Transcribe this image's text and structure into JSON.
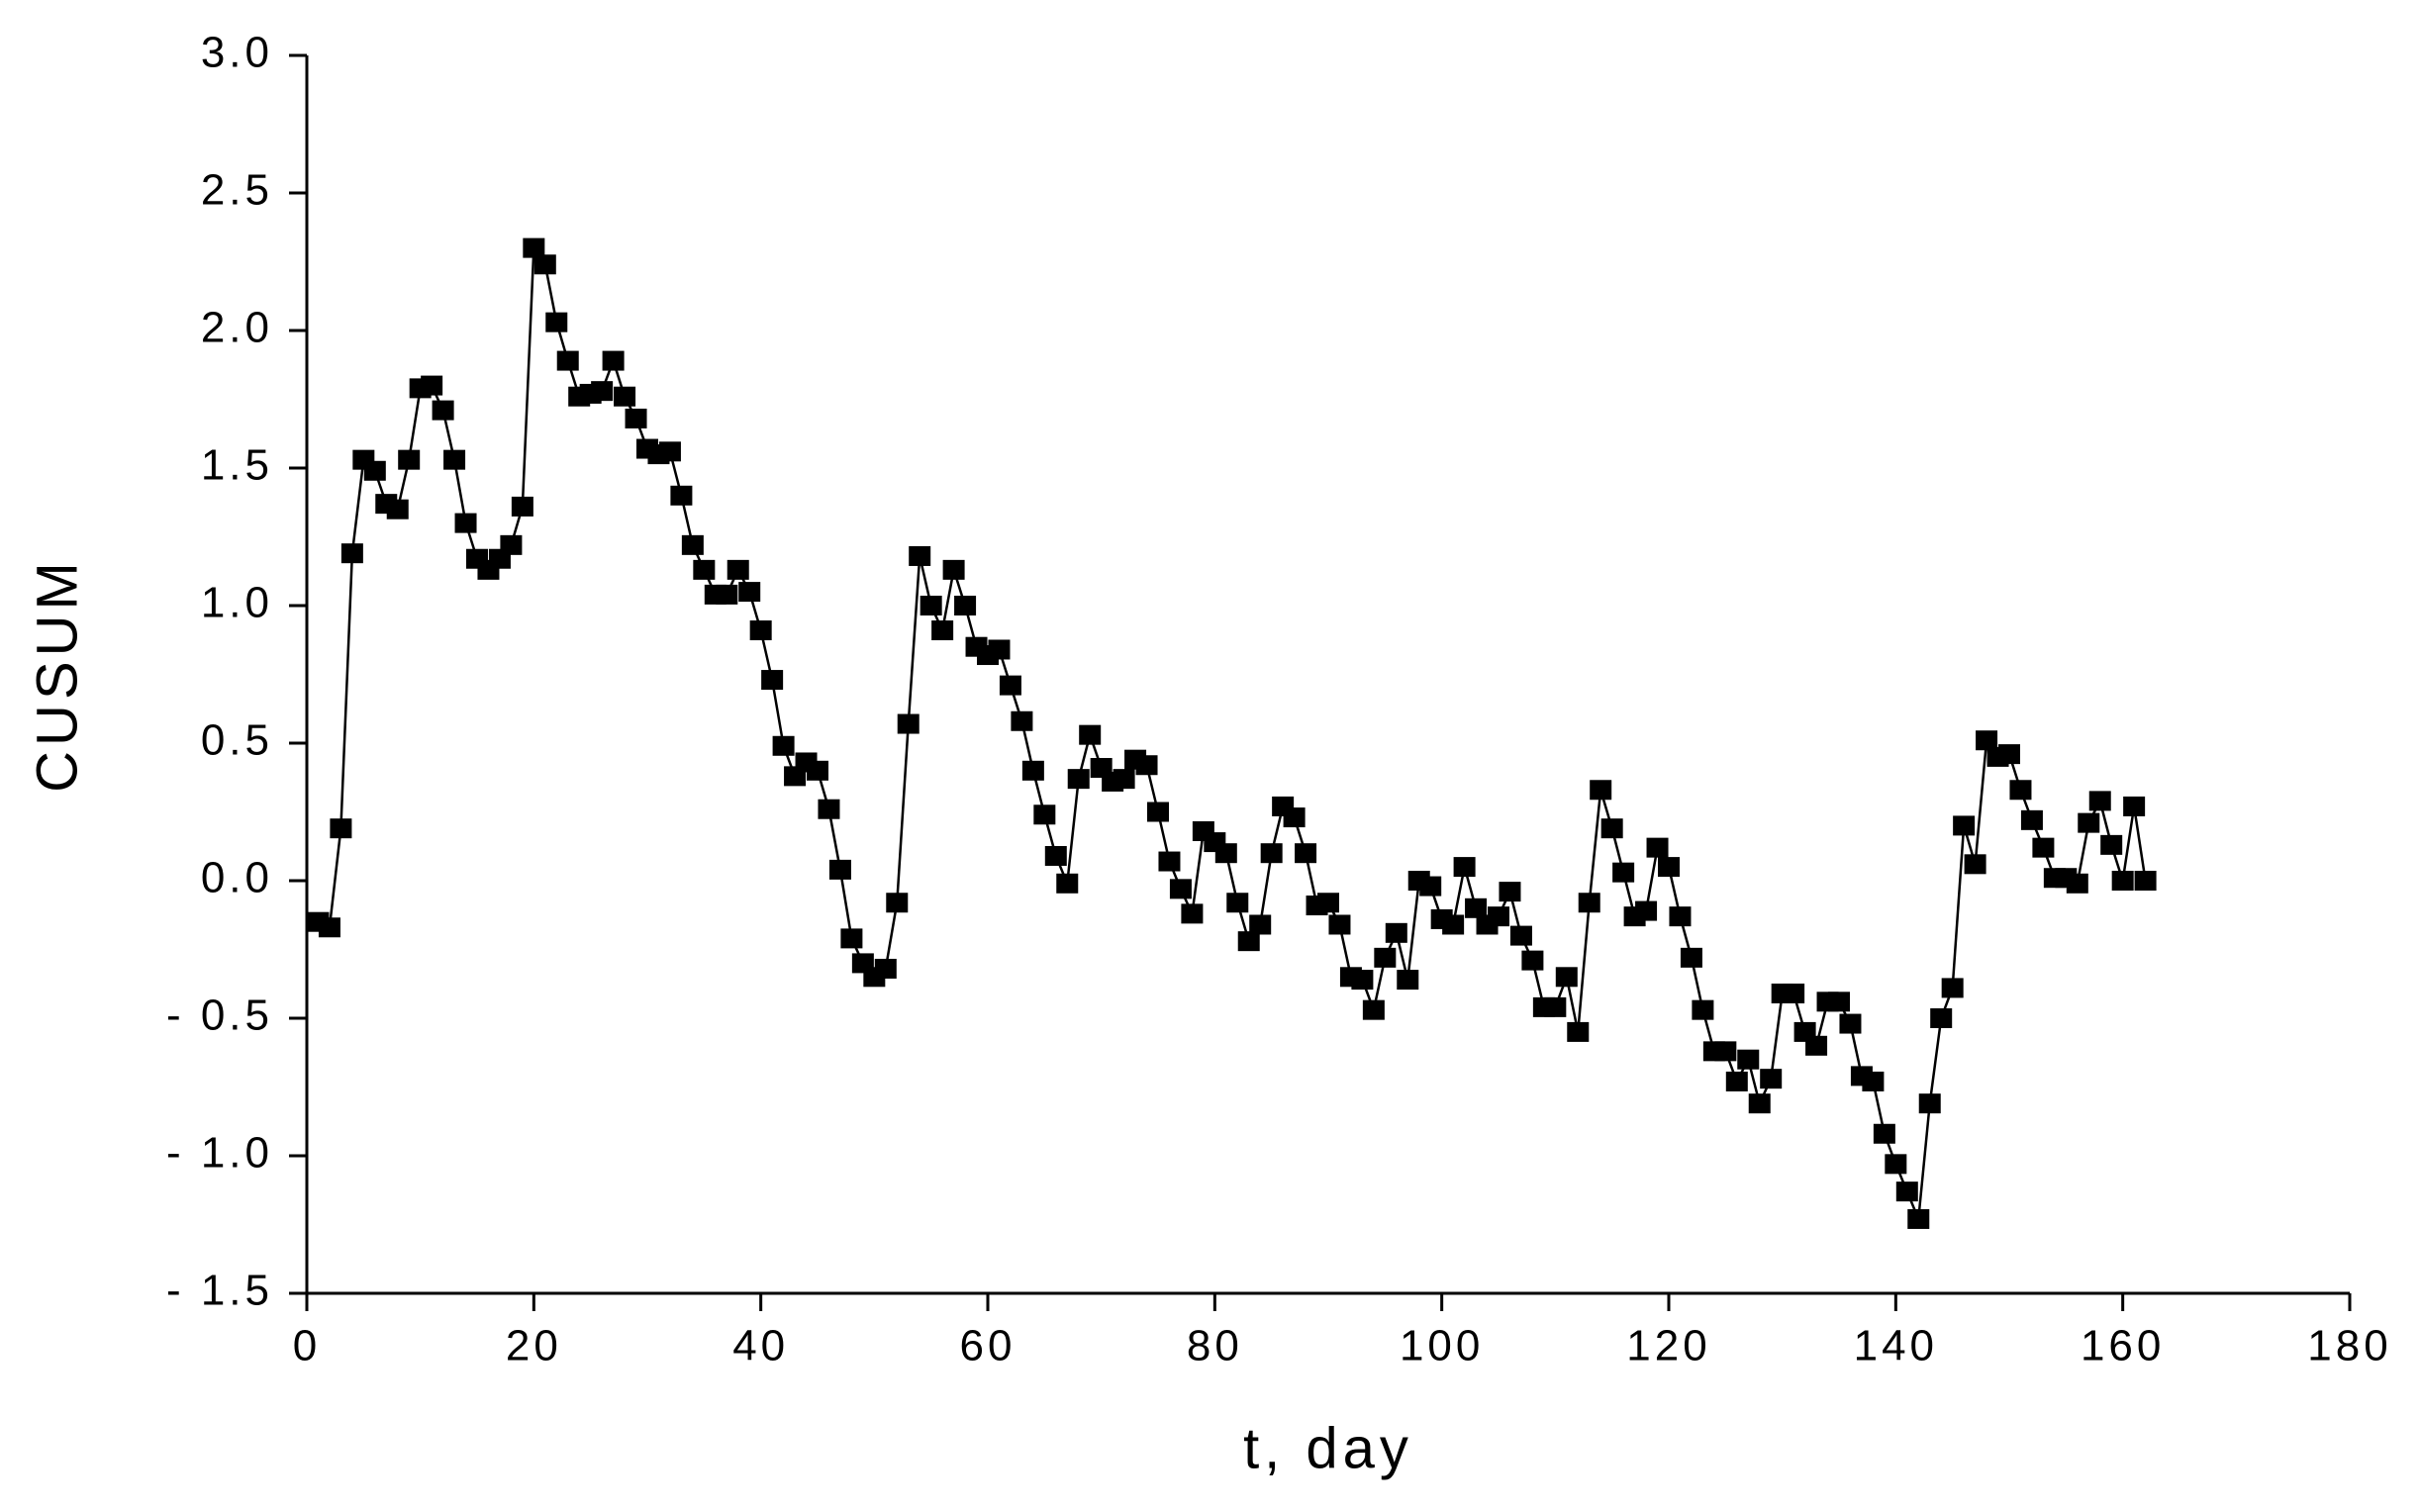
{
  "chart_data": {
    "type": "line",
    "xlabel": "t, day",
    "ylabel": "CUSUM",
    "xlim": [
      0,
      180
    ],
    "xticks": [
      0,
      20,
      40,
      60,
      80,
      100,
      120,
      140,
      160,
      180
    ],
    "ylim": [
      -1.5,
      3.0
    ],
    "yticks": [
      {
        "value": -1.5,
        "label": "- 1.5"
      },
      {
        "value": -1.0,
        "label": "- 1.0"
      },
      {
        "value": -0.5,
        "label": "- 0.5"
      },
      {
        "value": 0,
        "label": "0.0"
      },
      {
        "value": 0.5,
        "label": "0.5"
      },
      {
        "value": 1.0,
        "label": "1.0"
      },
      {
        "value": 1.5,
        "label": "1.5"
      },
      {
        "value": 2.0,
        "label": "2.0"
      },
      {
        "value": 2.5,
        "label": "2.5"
      },
      {
        "value": 3.0,
        "label": "3.0"
      }
    ],
    "grid": false,
    "color": "#000000",
    "x": [
      1,
      2,
      3,
      4,
      5,
      6,
      7,
      8,
      9,
      10,
      11,
      12,
      13,
      14,
      15,
      16,
      17,
      18,
      19,
      20,
      21,
      22,
      23,
      24,
      25,
      26,
      27,
      28,
      29,
      30,
      31,
      32,
      33,
      34,
      35,
      36,
      37,
      38,
      39,
      40,
      41,
      42,
      43,
      44,
      45,
      46,
      47,
      48,
      49,
      50,
      51,
      52,
      53,
      54,
      55,
      56,
      57,
      58,
      59,
      60,
      61,
      62,
      63,
      64,
      65,
      66,
      67,
      68,
      69,
      70,
      71,
      72,
      73,
      74,
      75,
      76,
      77,
      78,
      79,
      80,
      81,
      82,
      83,
      84,
      85,
      86,
      87,
      88,
      89,
      90,
      91,
      92,
      93,
      94,
      95,
      96,
      97,
      98,
      99,
      100,
      101,
      102,
      103,
      104,
      105,
      106,
      107,
      108,
      109,
      110,
      111,
      112,
      113,
      114,
      115,
      116,
      117,
      118,
      119,
      120,
      121,
      122,
      123,
      124,
      125,
      126,
      127,
      128,
      129,
      130,
      131,
      132,
      133,
      134,
      135,
      136,
      137,
      138,
      139,
      140,
      141,
      142,
      143,
      144,
      145,
      146,
      147,
      148,
      149,
      150,
      151,
      152,
      153,
      154,
      155,
      156,
      157,
      158,
      159,
      160,
      161,
      162
    ],
    "values": [
      -0.15,
      -0.17,
      0.19,
      1.19,
      1.53,
      1.49,
      1.37,
      1.35,
      1.53,
      1.79,
      1.8,
      1.71,
      1.53,
      1.3,
      1.17,
      1.13,
      1.17,
      1.22,
      1.36,
      2.3,
      2.24,
      2.03,
      1.89,
      1.76,
      1.77,
      1.78,
      1.89,
      1.76,
      1.68,
      1.57,
      1.55,
      1.56,
      1.4,
      1.22,
      1.13,
      1.04,
      1.04,
      1.13,
      1.05,
      0.91,
      0.73,
      0.49,
      0.38,
      0.43,
      0.4,
      0.26,
      0.04,
      -0.21,
      -0.3,
      -0.35,
      -0.32,
      -0.08,
      0.57,
      1.18,
      1.0,
      0.91,
      1.13,
      1.0,
      0.85,
      0.82,
      0.84,
      0.71,
      0.58,
      0.4,
      0.24,
      0.09,
      -0.01,
      0.37,
      0.53,
      0.41,
      0.36,
      0.37,
      0.44,
      0.42,
      0.25,
      0.07,
      -0.03,
      -0.12,
      0.18,
      0.14,
      0.1,
      -0.08,
      -0.22,
      -0.16,
      0.1,
      0.27,
      0.23,
      0.1,
      -0.09,
      -0.08,
      -0.16,
      -0.35,
      -0.36,
      -0.47,
      -0.28,
      -0.19,
      -0.36,
      0.0,
      -0.02,
      -0.14,
      -0.16,
      0.05,
      -0.1,
      -0.16,
      -0.13,
      -0.04,
      -0.2,
      -0.29,
      -0.46,
      -0.46,
      -0.35,
      -0.55,
      -0.08,
      0.33,
      0.19,
      0.03,
      -0.13,
      -0.11,
      0.12,
      0.05,
      -0.13,
      -0.28,
      -0.47,
      -0.62,
      -0.62,
      -0.73,
      -0.65,
      -0.81,
      -0.72,
      -0.41,
      -0.41,
      -0.55,
      -0.6,
      -0.44,
      -0.44,
      -0.52,
      -0.71,
      -0.73,
      -0.92,
      -1.03,
      -1.13,
      -1.23,
      -0.81,
      -0.5,
      -0.39,
      0.2,
      0.06,
      0.51,
      0.45,
      0.46,
      0.33,
      0.22,
      0.12,
      0.01,
      0.01,
      -0.01,
      0.21,
      0.29,
      0.13,
      0.0,
      0.27,
      0.0
    ]
  }
}
